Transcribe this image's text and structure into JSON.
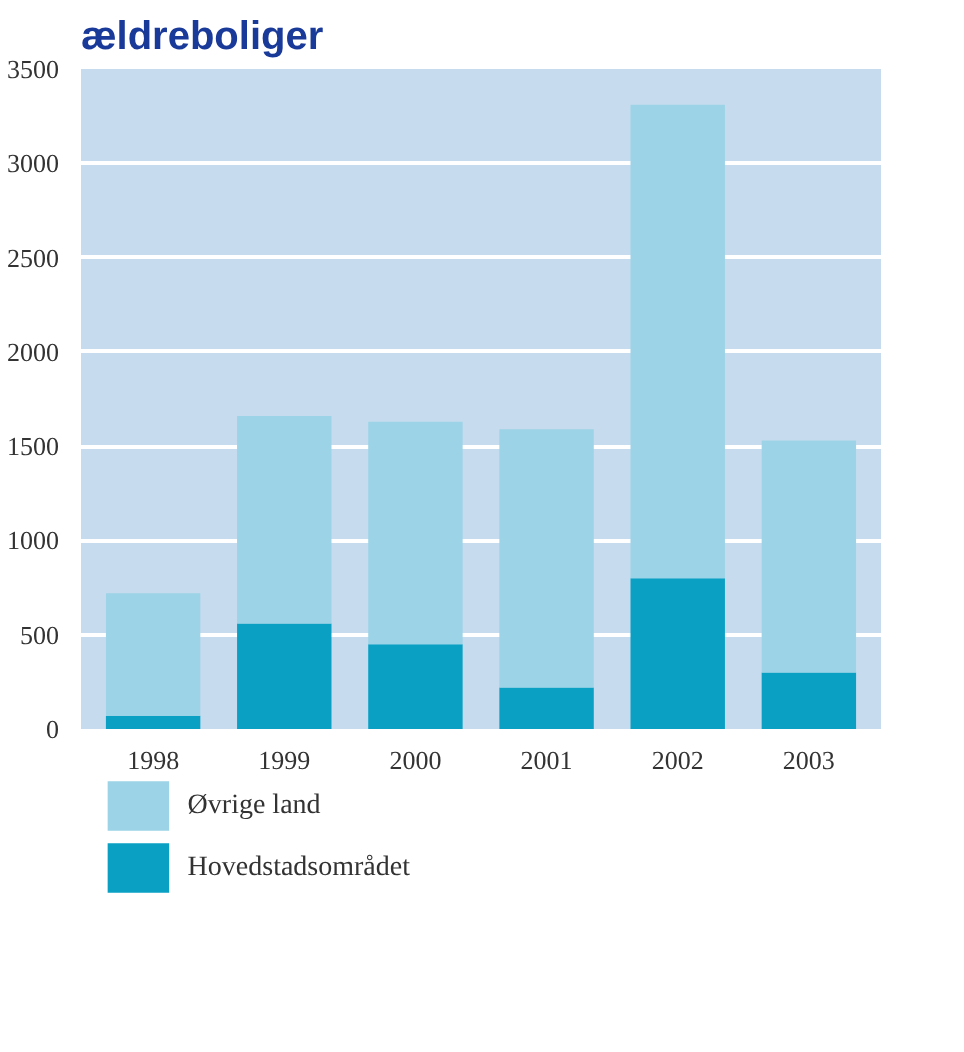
{
  "chart_data": {
    "type": "bar",
    "title": "ældreboliger",
    "stacked": true,
    "categories": [
      "1998",
      "1999",
      "2000",
      "2001",
      "2002",
      "2003"
    ],
    "series": [
      {
        "name": "Hovedstadsområdet",
        "color": "#0aa0c4",
        "values": [
          70,
          560,
          450,
          220,
          800,
          300
        ]
      },
      {
        "name": "Øvrige land",
        "color": "#9dd3e6",
        "values": [
          650,
          1100,
          1180,
          1370,
          2510,
          1230
        ]
      }
    ],
    "ylim": [
      0,
      3500
    ],
    "yticks": [
      0,
      500,
      1000,
      1500,
      2000,
      2500,
      3000,
      3500
    ],
    "grid": "y",
    "legend": "bottom"
  }
}
